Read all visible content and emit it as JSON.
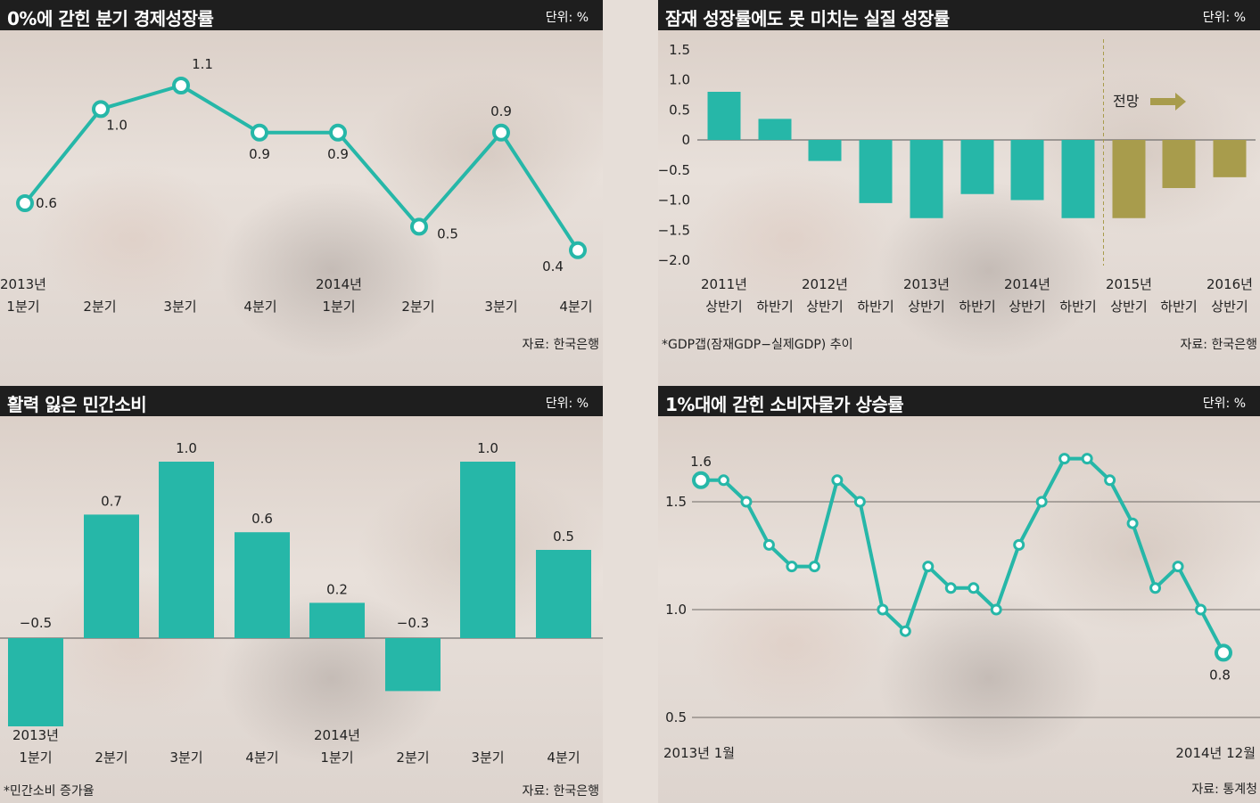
{
  "panels": {
    "p1": {
      "title": "0%에 갇힌 분기 경제성장률",
      "unit": "단위: %",
      "source": "자료: 한국은행",
      "note": ""
    },
    "p2": {
      "title": "잠재 성장률에도 못 미치는 실질 성장률",
      "unit": "단위: %",
      "source": "자료: 한국은행",
      "note": "*GDP갭(잠재GDP−실제GDP) 추이"
    },
    "p3": {
      "title": "활력 잃은 민간소비",
      "unit": "단위: %",
      "source": "자료: 한국은행",
      "note": "*민간소비 증가율"
    },
    "p4": {
      "title": "1%대에 갇힌 소비자물가 상승률",
      "unit": "단위: %",
      "source": "자료: 통계청",
      "note": ""
    }
  },
  "colors": {
    "teal": "#26b7a8",
    "olive": "#a89c4c",
    "title_bg": "#1e1e1e"
  },
  "chart_data": [
    {
      "type": "line",
      "title": "0%에 갇힌 분기 경제성장률",
      "categories": [
        [
          "2013년",
          "1분기"
        ],
        [
          "2분기"
        ],
        [
          "3분기"
        ],
        [
          "4분기"
        ],
        [
          "2014년",
          "1분기"
        ],
        [
          "2분기"
        ],
        [
          "3분기"
        ],
        [
          "4분기"
        ]
      ],
      "values": [
        0.6,
        1.0,
        1.1,
        0.9,
        0.9,
        0.5,
        0.9,
        0.4
      ],
      "value_labels": [
        "0.6",
        "1.0",
        "1.1",
        "0.9",
        "0.9",
        "0.5",
        "0.9",
        "0.4"
      ],
      "ylim": [
        0.3,
        1.2
      ]
    },
    {
      "type": "bar",
      "title": "잠재 성장률에도 못 미치는 실질 성장률",
      "categories": [
        [
          "2011년",
          "상반기"
        ],
        [
          "하반기"
        ],
        [
          "2012년",
          "상반기"
        ],
        [
          "하반기"
        ],
        [
          "2013년",
          "상반기"
        ],
        [
          "하반기"
        ],
        [
          "2014년",
          "상반기"
        ],
        [
          "하반기"
        ],
        [
          "2015년",
          "상반기"
        ],
        [
          "하반기"
        ],
        [
          "2016년",
          "상반기"
        ]
      ],
      "values": [
        0.8,
        0.35,
        -0.35,
        -1.05,
        -1.3,
        -0.9,
        -1.0,
        -1.3,
        -1.3,
        -0.8,
        -0.62
      ],
      "forecast_from_index": 8,
      "forecast_label": "전망",
      "yticks": [
        "1.5",
        "1.0",
        "0.5",
        "0",
        "−0.5",
        "−1.0",
        "−1.5",
        "−2.0"
      ],
      "ytick_values": [
        1.5,
        1.0,
        0.5,
        0,
        -0.5,
        -1.0,
        -1.5,
        -2.0
      ],
      "ylim": [
        -2.0,
        1.5
      ]
    },
    {
      "type": "bar",
      "title": "활력 잃은 민간소비",
      "categories": [
        [
          "2013년",
          "1분기"
        ],
        [
          "2분기"
        ],
        [
          "3분기"
        ],
        [
          "4분기"
        ],
        [
          "2014년",
          "1분기"
        ],
        [
          "2분기"
        ],
        [
          "3분기"
        ],
        [
          "4분기"
        ]
      ],
      "values": [
        -0.5,
        0.7,
        1.0,
        0.6,
        0.2,
        -0.3,
        1.0,
        0.5
      ],
      "value_labels": [
        "−0.5",
        "0.7",
        "1.0",
        "0.6",
        "0.2",
        "−0.3",
        "1.0",
        "0.5"
      ],
      "ylim": [
        -0.5,
        1.0
      ]
    },
    {
      "type": "line",
      "title": "1%대에 갇힌 소비자물가 상승률",
      "x_start_label": "2013년 1월",
      "x_end_label": "2014년 12월",
      "values": [
        1.6,
        1.6,
        1.5,
        1.3,
        1.2,
        1.2,
        1.6,
        1.5,
        1.0,
        0.9,
        1.2,
        1.1,
        1.1,
        1.0,
        1.3,
        1.5,
        1.7,
        1.7,
        1.6,
        1.4,
        1.1,
        1.2,
        1.0,
        0.8
      ],
      "first_label": "1.6",
      "last_label": "0.8",
      "yticks": [
        "1.5",
        "1.0",
        "0.5"
      ],
      "ytick_values": [
        1.5,
        1.0,
        0.5
      ],
      "ylim": [
        0.5,
        1.85
      ]
    }
  ]
}
